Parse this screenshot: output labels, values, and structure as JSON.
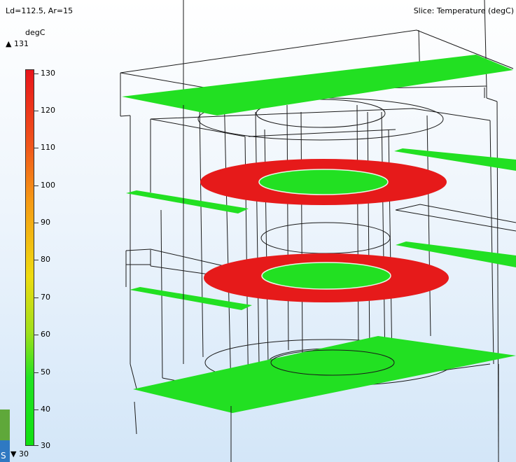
{
  "header": {
    "params": "Ld=112.5, Ar=15",
    "slice_title": "Slice: Temperature (degC)"
  },
  "legend": {
    "unit": "degC",
    "max_value": "131",
    "min_value": "30",
    "ticks": [
      "130",
      "120",
      "110",
      "100",
      "90",
      "80",
      "70",
      "60",
      "50",
      "40",
      "30"
    ]
  },
  "edge_fragment": "S",
  "colors": {
    "hot": "#e61a1a",
    "cold": "#22e022",
    "edge": "#1a1a1a"
  }
}
